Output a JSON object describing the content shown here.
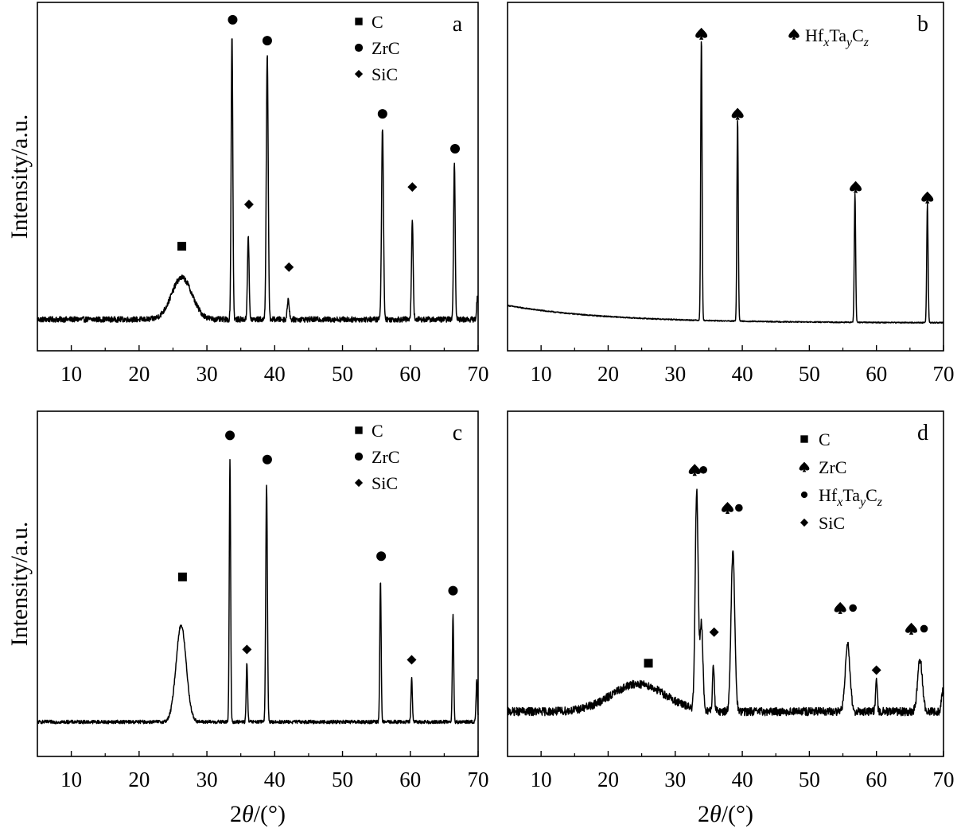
{
  "chart_data": [
    {
      "type": "line",
      "panel": "a",
      "xlabel": "2θ/(°)",
      "ylabel": "Intensity/a.u.",
      "xlim": [
        5,
        70
      ],
      "xticks": [
        "10",
        "20",
        "30",
        "40",
        "50",
        "60",
        "70"
      ],
      "baseline": 0.09,
      "noise": 0.008,
      "broad_humps": [
        {
          "x": 26.3,
          "h": 0.12,
          "w": 1.5
        }
      ],
      "peaks": [
        {
          "x": 33.7,
          "h": 0.82,
          "w": 0.12
        },
        {
          "x": 36.1,
          "h": 0.24,
          "w": 0.12
        },
        {
          "x": 38.9,
          "h": 0.76,
          "w": 0.14
        },
        {
          "x": 42.0,
          "h": 0.06,
          "w": 0.14
        },
        {
          "x": 55.9,
          "h": 0.55,
          "w": 0.14
        },
        {
          "x": 60.3,
          "h": 0.29,
          "w": 0.12
        },
        {
          "x": 66.5,
          "h": 0.45,
          "w": 0.12
        },
        {
          "x": 69.9,
          "h": 0.06,
          "w": 0.12
        }
      ],
      "markers": [
        {
          "x": 26.3,
          "y": 0.3,
          "symbol": "square"
        },
        {
          "x": 33.8,
          "y": 0.95,
          "symbol": "circle"
        },
        {
          "x": 36.2,
          "y": 0.42,
          "symbol": "diamond"
        },
        {
          "x": 38.9,
          "y": 0.89,
          "symbol": "circle"
        },
        {
          "x": 42.1,
          "y": 0.24,
          "symbol": "diamond"
        },
        {
          "x": 55.9,
          "y": 0.68,
          "symbol": "circle"
        },
        {
          "x": 60.3,
          "y": 0.47,
          "symbol": "diamond"
        },
        {
          "x": 66.6,
          "y": 0.58,
          "symbol": "circle"
        }
      ],
      "legend": [
        {
          "symbol": "square",
          "label": "C"
        },
        {
          "symbol": "circle",
          "label": "ZrC"
        },
        {
          "symbol": "diamond",
          "label": "SiC"
        }
      ]
    },
    {
      "type": "line",
      "panel": "b",
      "xlabel": "2θ/(°)",
      "ylabel": "",
      "xlim": [
        5,
        70
      ],
      "xticks": [
        "10",
        "20",
        "30",
        "40",
        "50",
        "60",
        "70"
      ],
      "baseline": 0.08,
      "decay": {
        "amp": 0.05,
        "tau": 15
      },
      "noise": 0.0015,
      "broad_humps": [],
      "peaks": [
        {
          "x": 33.9,
          "h": 0.81,
          "w": 0.1
        },
        {
          "x": 39.3,
          "h": 0.58,
          "w": 0.1
        },
        {
          "x": 56.8,
          "h": 0.37,
          "w": 0.1
        },
        {
          "x": 67.6,
          "h": 0.34,
          "w": 0.1
        }
      ],
      "markers": [
        {
          "x": 33.9,
          "y": 0.91,
          "symbol": "spade"
        },
        {
          "x": 39.3,
          "y": 0.68,
          "symbol": "spade"
        },
        {
          "x": 56.9,
          "y": 0.47,
          "symbol": "spade"
        },
        {
          "x": 67.6,
          "y": 0.44,
          "symbol": "spade"
        }
      ],
      "legend_formula": {
        "symbol": "spade",
        "hf": "Hf",
        "x": "x",
        "ta": "Ta",
        "y": "y",
        "c": "C",
        "z": "z"
      }
    },
    {
      "type": "line",
      "panel": "c",
      "xlabel": "2θ/(°)",
      "ylabel": "Intensity/a.u.",
      "xlim": [
        5,
        70
      ],
      "xticks": [
        "10",
        "20",
        "30",
        "40",
        "50",
        "60",
        "70"
      ],
      "baseline": 0.1,
      "noise": 0.005,
      "broad_humps": [
        {
          "x": 26.2,
          "h": 0.28,
          "w": 0.75
        }
      ],
      "peaks": [
        {
          "x": 33.4,
          "h": 0.76,
          "w": 0.1
        },
        {
          "x": 35.9,
          "h": 0.17,
          "w": 0.1
        },
        {
          "x": 38.8,
          "h": 0.69,
          "w": 0.12
        },
        {
          "x": 55.6,
          "h": 0.41,
          "w": 0.1
        },
        {
          "x": 60.2,
          "h": 0.13,
          "w": 0.1
        },
        {
          "x": 66.3,
          "h": 0.31,
          "w": 0.1
        },
        {
          "x": 69.8,
          "h": 0.12,
          "w": 0.1
        }
      ],
      "markers": [
        {
          "x": 26.4,
          "y": 0.52,
          "symbol": "square"
        },
        {
          "x": 33.4,
          "y": 0.93,
          "symbol": "circle"
        },
        {
          "x": 35.9,
          "y": 0.31,
          "symbol": "diamond"
        },
        {
          "x": 38.9,
          "y": 0.86,
          "symbol": "circle"
        },
        {
          "x": 55.7,
          "y": 0.58,
          "symbol": "circle"
        },
        {
          "x": 60.2,
          "y": 0.28,
          "symbol": "diamond"
        },
        {
          "x": 66.3,
          "y": 0.48,
          "symbol": "circle"
        }
      ],
      "legend": [
        {
          "symbol": "square",
          "label": "C"
        },
        {
          "symbol": "circle",
          "label": "ZrC"
        },
        {
          "symbol": "diamond",
          "label": "SiC"
        }
      ]
    },
    {
      "type": "line",
      "panel": "d",
      "xlabel": "2θ/(°)",
      "ylabel": "",
      "xlim": [
        5,
        70
      ],
      "xticks": [
        "10",
        "20",
        "30",
        "40",
        "50",
        "60",
        "70"
      ],
      "baseline": 0.13,
      "noise": 0.012,
      "broad_humps": [
        {
          "x": 24.5,
          "h": 0.08,
          "w": 4.0
        }
      ],
      "peaks": [
        {
          "x": 33.2,
          "h": 0.63,
          "w": 0.22
        },
        {
          "x": 33.9,
          "h": 0.25,
          "w": 0.22
        },
        {
          "x": 35.7,
          "h": 0.13,
          "w": 0.14
        },
        {
          "x": 38.6,
          "h": 0.46,
          "w": 0.28
        },
        {
          "x": 55.7,
          "h": 0.2,
          "w": 0.35
        },
        {
          "x": 60.0,
          "h": 0.1,
          "w": 0.12
        },
        {
          "x": 66.5,
          "h": 0.15,
          "w": 0.35
        },
        {
          "x": 69.9,
          "h": 0.06,
          "w": 0.2
        }
      ],
      "markers": [
        {
          "x": 26.0,
          "y": 0.27,
          "symbol": "square"
        },
        {
          "x": 32.9,
          "y": 0.83,
          "symbol": "spade"
        },
        {
          "x": 34.2,
          "y": 0.83,
          "symbol": "dot"
        },
        {
          "x": 35.8,
          "y": 0.36,
          "symbol": "diamond"
        },
        {
          "x": 37.8,
          "y": 0.72,
          "symbol": "spade"
        },
        {
          "x": 39.5,
          "y": 0.72,
          "symbol": "dot"
        },
        {
          "x": 54.6,
          "y": 0.43,
          "symbol": "spade"
        },
        {
          "x": 56.5,
          "y": 0.43,
          "symbol": "dot"
        },
        {
          "x": 60.0,
          "y": 0.25,
          "symbol": "diamond"
        },
        {
          "x": 65.2,
          "y": 0.37,
          "symbol": "spade"
        },
        {
          "x": 67.1,
          "y": 0.37,
          "symbol": "dot"
        }
      ],
      "legend": [
        {
          "symbol": "square",
          "label": "C"
        },
        {
          "symbol": "spade",
          "label": "ZrC"
        },
        {
          "symbol": "dot",
          "label": "formula"
        },
        {
          "symbol": "diamond",
          "label": "SiC"
        }
      ],
      "legend_formula": {
        "hf": "Hf",
        "x": "x",
        "ta": "Ta",
        "y": "y",
        "c": "C",
        "z": "z"
      }
    }
  ]
}
